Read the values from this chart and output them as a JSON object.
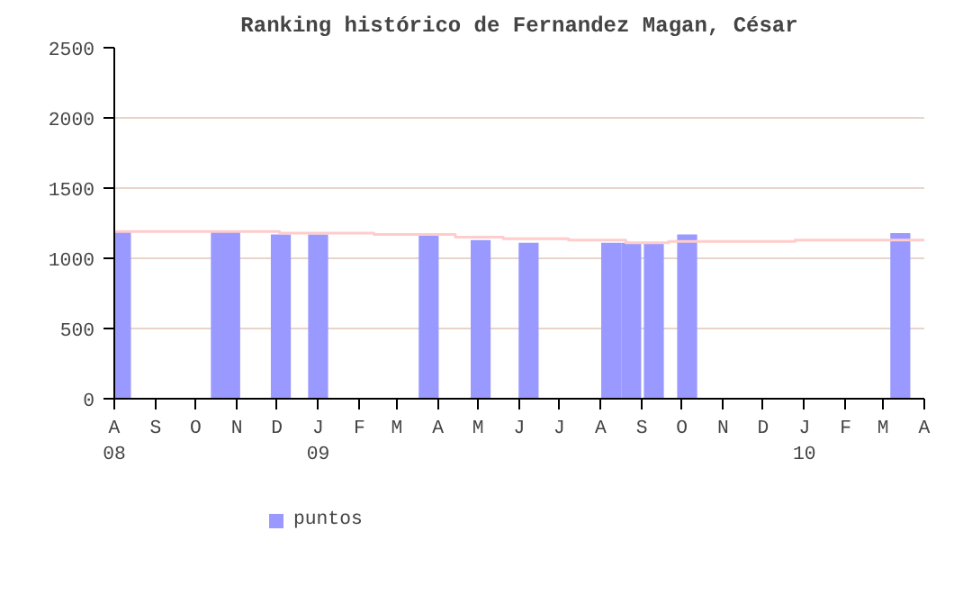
{
  "chart_data": {
    "type": "bar",
    "title": "Ranking histórico de Fernandez Magan, César",
    "xlim": [
      "2008-08-01",
      "2010-04-01"
    ],
    "xticks": [
      {
        "value": "2008-08-01",
        "label": "A\n08"
      },
      {
        "value": "2008-09-01",
        "label": "S"
      },
      {
        "value": "2008-10-01",
        "label": "O"
      },
      {
        "value": "2008-11-01",
        "label": "N"
      },
      {
        "value": "2008-12-01",
        "label": "D"
      },
      {
        "value": "2009-01-01",
        "label": "J\n09"
      },
      {
        "value": "2009-02-01",
        "label": "F"
      },
      {
        "value": "2009-03-01",
        "label": "M"
      },
      {
        "value": "2009-04-01",
        "label": "A"
      },
      {
        "value": "2009-05-01",
        "label": "M"
      },
      {
        "value": "2009-06-01",
        "label": "J"
      },
      {
        "value": "2009-07-01",
        "label": "J"
      },
      {
        "value": "2009-08-01",
        "label": "A"
      },
      {
        "value": "2009-09-01",
        "label": "S"
      },
      {
        "value": "2009-10-01",
        "label": "O"
      },
      {
        "value": "2009-11-01",
        "label": "N"
      },
      {
        "value": "2009-12-01",
        "label": "D"
      },
      {
        "value": "2010-01-01",
        "label": "J\n10"
      },
      {
        "value": "2010-02-01",
        "label": "F"
      },
      {
        "value": "2010-03-01",
        "label": "M"
      },
      {
        "value": "2010-04-01",
        "label": "A"
      }
    ],
    "ylim": [
      0,
      2500
    ],
    "yticks": [
      0,
      500,
      1000,
      1500,
      2000,
      2500
    ],
    "grid": "y",
    "legend": "bottom left",
    "series": [
      {
        "name": "puntos",
        "color": "#9999ff",
        "x": [
          "2008-08-06",
          "2008-10-20",
          "2008-10-27",
          "2008-12-04",
          "2009-01-01",
          "2009-03-25",
          "2009-05-03",
          "2009-06-08",
          "2009-08-09",
          "2009-08-24",
          "2009-09-10",
          "2009-10-05",
          "2010-03-14"
        ],
        "values": [
          1190,
          1190,
          1190,
          1170,
          1170,
          1170,
          1130,
          1110,
          1110,
          1110,
          1110,
          1170,
          1180
        ]
      },
      {
        "type": "step",
        "color": "#ffcccc",
        "x": [
          "2008-08-01",
          "2008-12-03",
          "2009-02-12",
          "2009-04-14",
          "2009-05-20",
          "2009-07-08",
          "2009-08-20",
          "2009-09-21",
          "2009-12-25",
          "2010-04-01"
        ],
        "values": [
          1190,
          1180,
          1170,
          1150,
          1140,
          1130,
          1110,
          1120,
          1130,
          1130
        ]
      }
    ]
  }
}
